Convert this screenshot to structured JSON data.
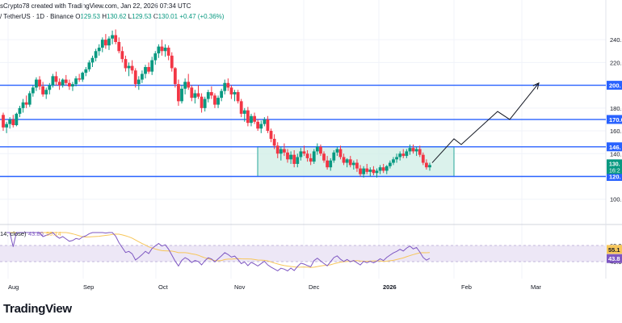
{
  "header": {
    "title": "sCrypto78 created with TradingView.com, Jan 22, 2026 07:34 UTC",
    "symbol": "/ TetherUS · 1D · Binance",
    "o_label": "O",
    "o_value": "129.53",
    "h_label": "H",
    "h_value": "130.62",
    "l_label": "L",
    "l_value": "129.53",
    "c_label": "C",
    "c_value": "130.01",
    "change": "+0.47 (+0.36%)"
  },
  "branding": {
    "logo_text": "TradingView"
  },
  "colors": {
    "up": "#089981",
    "down": "#f23645",
    "level": "#2962ff",
    "box_fill": "#cfeee6",
    "box_stroke": "#26a69a",
    "rsi_line": "#7e57c2",
    "rsi_ma": "#f7c65a",
    "rsi_band": "#ede7f6"
  },
  "chart_data": [
    {
      "type": "candlestick",
      "x_ticks": [
        "Aug",
        "Sep",
        "Oct",
        "Nov",
        "Dec",
        "2026",
        "Feb",
        "Mar"
      ],
      "y_ticks": [
        100.0,
        120.0,
        140.0,
        160.0,
        180.0,
        200.0,
        220.0,
        240.0
      ],
      "y_tick_labels": [
        "100.0",
        "",
        "140.0",
        "160.0",
        "180.0",
        "",
        "220.0",
        "240.0"
      ],
      "ylim": [
        92,
        255
      ],
      "price_labels": [
        {
          "text": "170.0",
          "kind": "level"
        },
        {
          "text": "146.",
          "kind": "level"
        },
        {
          "text": "200.",
          "kind": "level"
        },
        {
          "text": "120.",
          "kind": "level"
        },
        {
          "text": "130.",
          "subtext": "16:2",
          "kind": "last"
        }
      ],
      "horizontal_levels": [
        200,
        170,
        146,
        120
      ],
      "range_box": {
        "from_date": "2025-11-12",
        "to_date": "2026-02-01",
        "low": 120,
        "high": 146
      },
      "projection_path": [
        {
          "date": "2026-01-23",
          "y": 132
        },
        {
          "date": "2026-02-01",
          "y": 153
        },
        {
          "date": "2026-02-04",
          "y": 148
        },
        {
          "date": "2026-02-19",
          "y": 177
        },
        {
          "date": "2026-02-24",
          "y": 170
        },
        {
          "date": "2026-03-08",
          "y": 202
        }
      ],
      "candles_ohlc": [
        [
          174,
          176,
          160,
          163
        ],
        [
          163,
          168,
          158,
          166
        ],
        [
          166,
          172,
          162,
          170
        ],
        [
          170,
          174,
          163,
          165
        ],
        [
          165,
          176,
          164,
          175
        ],
        [
          175,
          182,
          172,
          180
        ],
        [
          180,
          188,
          176,
          185
        ],
        [
          185,
          191,
          180,
          183
        ],
        [
          183,
          195,
          181,
          193
        ],
        [
          193,
          200,
          190,
          198
        ],
        [
          198,
          207,
          195,
          205
        ],
        [
          205,
          208,
          196,
          199
        ],
        [
          199,
          203,
          190,
          192
        ],
        [
          192,
          198,
          188,
          196
        ],
        [
          196,
          202,
          192,
          200
        ],
        [
          200,
          210,
          198,
          208
        ],
        [
          208,
          212,
          200,
          203
        ],
        [
          203,
          206,
          196,
          200
        ],
        [
          200,
          206,
          198,
          205
        ],
        [
          205,
          209,
          200,
          202
        ],
        [
          202,
          205,
          196,
          199
        ],
        [
          199,
          203,
          195,
          201
        ],
        [
          201,
          208,
          199,
          206
        ],
        [
          206,
          210,
          203,
          205
        ],
        [
          205,
          212,
          203,
          211
        ],
        [
          211,
          216,
          208,
          214
        ],
        [
          214,
          222,
          212,
          220
        ],
        [
          220,
          226,
          216,
          224
        ],
        [
          224,
          232,
          221,
          230
        ],
        [
          230,
          236,
          226,
          233
        ],
        [
          233,
          242,
          229,
          240
        ],
        [
          240,
          245,
          232,
          235
        ],
        [
          235,
          243,
          231,
          241
        ],
        [
          241,
          248,
          236,
          244
        ],
        [
          244,
          249,
          236,
          238
        ],
        [
          238,
          242,
          228,
          230
        ],
        [
          230,
          234,
          220,
          223
        ],
        [
          223,
          226,
          212,
          215
        ],
        [
          215,
          220,
          208,
          217
        ],
        [
          217,
          222,
          210,
          213
        ],
        [
          213,
          215,
          198,
          201
        ],
        [
          201,
          208,
          196,
          205
        ],
        [
          205,
          213,
          202,
          210
        ],
        [
          210,
          218,
          206,
          216
        ],
        [
          216,
          220,
          210,
          212
        ],
        [
          212,
          225,
          209,
          222
        ],
        [
          222,
          230,
          218,
          228
        ],
        [
          228,
          236,
          224,
          234
        ],
        [
          234,
          240,
          226,
          230
        ],
        [
          230,
          236,
          225,
          233
        ],
        [
          233,
          235,
          222,
          226
        ],
        [
          226,
          229,
          212,
          215
        ],
        [
          215,
          216,
          198,
          201
        ],
        [
          201,
          205,
          182,
          186
        ],
        [
          186,
          200,
          184,
          197
        ],
        [
          197,
          206,
          192,
          203
        ],
        [
          203,
          210,
          196,
          198
        ],
        [
          198,
          200,
          186,
          189
        ],
        [
          189,
          196,
          184,
          193
        ],
        [
          193,
          200,
          188,
          190
        ],
        [
          190,
          193,
          176,
          180
        ],
        [
          180,
          190,
          177,
          188
        ],
        [
          188,
          196,
          185,
          194
        ],
        [
          194,
          199,
          188,
          191
        ],
        [
          191,
          193,
          180,
          183
        ],
        [
          183,
          191,
          180,
          189
        ],
        [
          189,
          197,
          186,
          195
        ],
        [
          195,
          205,
          192,
          202
        ],
        [
          202,
          206,
          195,
          198
        ],
        [
          198,
          200,
          188,
          192
        ],
        [
          192,
          196,
          186,
          194
        ],
        [
          194,
          196,
          184,
          186
        ],
        [
          186,
          188,
          172,
          175
        ],
        [
          175,
          180,
          168,
          178
        ],
        [
          178,
          181,
          164,
          167
        ],
        [
          167,
          175,
          164,
          173
        ],
        [
          173,
          176,
          166,
          168
        ],
        [
          168,
          170,
          160,
          162
        ],
        [
          162,
          169,
          158,
          166
        ],
        [
          166,
          172,
          164,
          170
        ],
        [
          170,
          173,
          158,
          160
        ],
        [
          160,
          162,
          150,
          153
        ],
        [
          153,
          157,
          144,
          147
        ],
        [
          147,
          150,
          136,
          140
        ],
        [
          140,
          146,
          134,
          144
        ],
        [
          144,
          149,
          138,
          141
        ],
        [
          141,
          144,
          132,
          135
        ],
        [
          135,
          142,
          131,
          139
        ],
        [
          139,
          143,
          128,
          131
        ],
        [
          131,
          140,
          128,
          137
        ],
        [
          137,
          145,
          134,
          142
        ],
        [
          142,
          147,
          138,
          140
        ],
        [
          140,
          143,
          133,
          136
        ],
        [
          136,
          140,
          130,
          133
        ],
        [
          133,
          144,
          131,
          142
        ],
        [
          142,
          149,
          139,
          146
        ],
        [
          146,
          148,
          138,
          140
        ],
        [
          140,
          142,
          132,
          134
        ],
        [
          134,
          138,
          126,
          128
        ],
        [
          128,
          136,
          125,
          134
        ],
        [
          134,
          143,
          132,
          141
        ],
        [
          141,
          146,
          138,
          144
        ],
        [
          144,
          147,
          135,
          137
        ],
        [
          137,
          140,
          130,
          132
        ],
        [
          132,
          136,
          128,
          135
        ],
        [
          135,
          138,
          128,
          130
        ],
        [
          130,
          134,
          126,
          132
        ],
        [
          132,
          135,
          124,
          127
        ],
        [
          127,
          130,
          120,
          122
        ],
        [
          122,
          129,
          119,
          127
        ],
        [
          127,
          131,
          122,
          124
        ],
        [
          124,
          128,
          120,
          126
        ],
        [
          126,
          129,
          121,
          123
        ],
        [
          123,
          127,
          119,
          125
        ],
        [
          125,
          130,
          122,
          128
        ],
        [
          128,
          131,
          123,
          125
        ],
        [
          125,
          130,
          122,
          129
        ],
        [
          129,
          134,
          127,
          132
        ],
        [
          132,
          137,
          130,
          135
        ],
        [
          135,
          140,
          132,
          137
        ],
        [
          137,
          142,
          134,
          140
        ],
        [
          140,
          144,
          136,
          138
        ],
        [
          138,
          144,
          136,
          142
        ],
        [
          142,
          148,
          139,
          145
        ],
        [
          145,
          148,
          140,
          142
        ],
        [
          142,
          146,
          138,
          144
        ],
        [
          144,
          147,
          137,
          139
        ],
        [
          139,
          141,
          130,
          132
        ],
        [
          132,
          135,
          126,
          128
        ],
        [
          128,
          132,
          125,
          130
        ]
      ]
    },
    {
      "type": "line",
      "label": "14, close)",
      "series_values": [
        "43.80",
        "55.14"
      ],
      "y_tick_labels": [
        "60.0",
        "40.0"
      ],
      "value_badges": [
        {
          "text": "55.1",
          "series": "ma"
        },
        {
          "text": "43.8",
          "series": "rsi"
        }
      ],
      "ylim": [
        24,
        76
      ],
      "band": [
        40,
        60
      ]
    }
  ]
}
